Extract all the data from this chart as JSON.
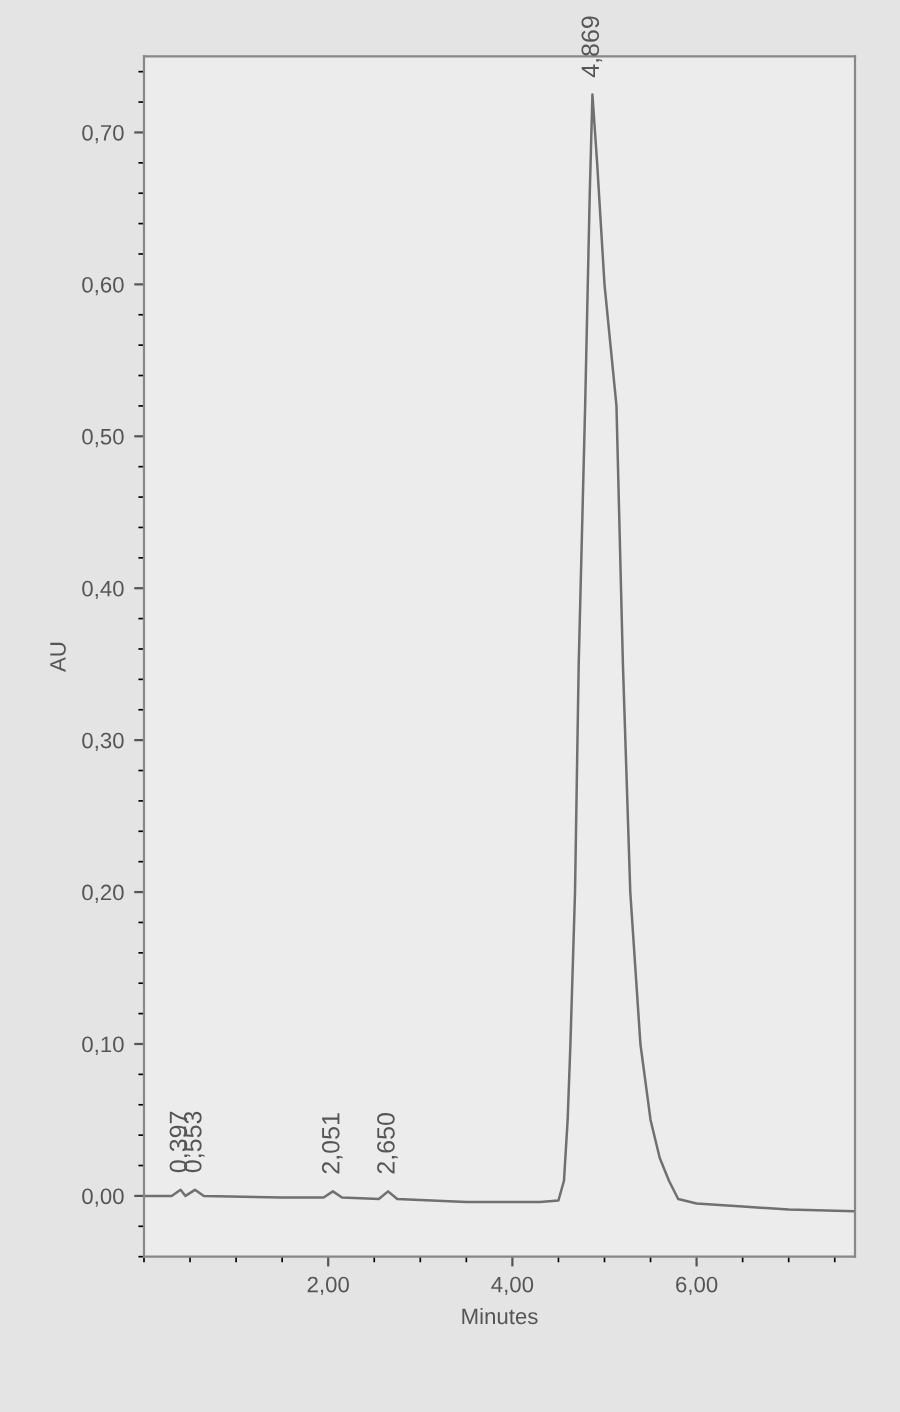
{
  "chart_data": {
    "type": "line",
    "xlabel": "Minutes",
    "ylabel": "AU",
    "x": [
      0.0,
      0.3,
      0.397,
      0.45,
      0.553,
      0.65,
      1.5,
      1.95,
      2.051,
      2.15,
      2.55,
      2.65,
      2.75,
      3.5,
      4.3,
      4.5,
      4.56,
      4.6,
      4.63,
      4.68,
      4.72,
      4.79,
      4.84,
      4.869,
      4.92,
      5.0,
      5.13,
      5.2,
      5.28,
      5.39,
      5.5,
      5.6,
      5.7,
      5.8,
      6.0,
      6.5,
      7.0,
      7.7
    ],
    "series": [
      {
        "color": "#707070",
        "values": [
          0.0,
          0.0,
          0.004,
          0.0,
          0.004,
          0.0,
          -0.001,
          -0.001,
          0.003,
          -0.001,
          -0.002,
          0.003,
          -0.002,
          -0.004,
          -0.004,
          -0.003,
          0.01,
          0.05,
          0.1,
          0.2,
          0.35,
          0.52,
          0.66,
          0.725,
          0.68,
          0.6,
          0.52,
          0.35,
          0.2,
          0.1,
          0.05,
          0.025,
          0.01,
          -0.002,
          -0.005,
          -0.007,
          -0.009,
          -0.01
        ]
      }
    ],
    "annotations": [
      {
        "text": "0,397",
        "x": 0.397,
        "y": 0.004
      },
      {
        "text": "0,553",
        "x": 0.553,
        "y": 0.004
      },
      {
        "text": "2,051",
        "x": 2.051,
        "y": 0.003
      },
      {
        "text": "2,650",
        "x": 2.65,
        "y": 0.003
      },
      {
        "text": "4,869",
        "x": 4.869,
        "y": 0.725
      }
    ],
    "xlim": [
      0,
      7.72
    ],
    "ylim": [
      -0.04,
      0.75
    ],
    "xticks": [
      {
        "value": 2,
        "label": "2,00"
      },
      {
        "value": 4,
        "label": "4,00"
      },
      {
        "value": 6,
        "label": "6,00"
      }
    ],
    "yticks": [
      {
        "value": 0,
        "label": "0,00"
      },
      {
        "value": 0.1,
        "label": "0,10"
      },
      {
        "value": 0.2,
        "label": "0,20"
      },
      {
        "value": 0.3,
        "label": "0,30"
      },
      {
        "value": 0.4,
        "label": "0,40"
      },
      {
        "value": 0.5,
        "label": "0,50"
      },
      {
        "value": 0.6,
        "label": "0,60"
      },
      {
        "value": 0.7,
        "label": "0,70"
      }
    ],
    "grid": false,
    "marker": "none",
    "line_style": "solid"
  }
}
